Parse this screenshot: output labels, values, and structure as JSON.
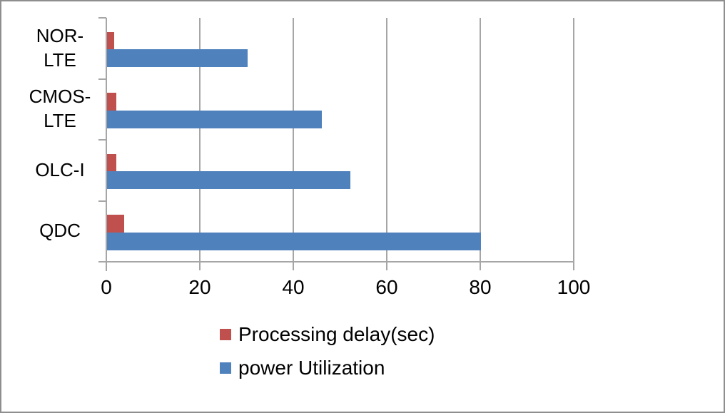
{
  "chart_data": {
    "type": "bar",
    "orientation": "horizontal",
    "title": "",
    "categories": [
      "NOR-LTE",
      "CMOS-LTE",
      "OLC-I",
      "QDC"
    ],
    "category_labels_display": [
      "NOR-\nLTE",
      "CMOS-\nLTE",
      "OLC-I",
      "QDC"
    ],
    "series": [
      {
        "name": "Processing delay(sec)",
        "color": "#c0504d",
        "values": [
          1.5,
          2,
          2,
          3.7
        ]
      },
      {
        "name": "power Utilization",
        "color": "#4f81bd",
        "values": [
          30,
          46,
          52,
          80
        ]
      }
    ],
    "x_axis": {
      "min": 0,
      "max": 100,
      "tick_interval": 20,
      "ticks": [
        0,
        20,
        40,
        60,
        80,
        100
      ],
      "tick_labels": [
        "0",
        "20",
        "40",
        "60",
        "80",
        "100"
      ]
    },
    "grid": true,
    "legend_position": "bottom-center",
    "colors": {
      "gridline": "#a6a6a6",
      "axis": "#a6a6a6",
      "text": "#000000",
      "frame_border": "#8e8e8e",
      "background": "#ffffff"
    }
  }
}
